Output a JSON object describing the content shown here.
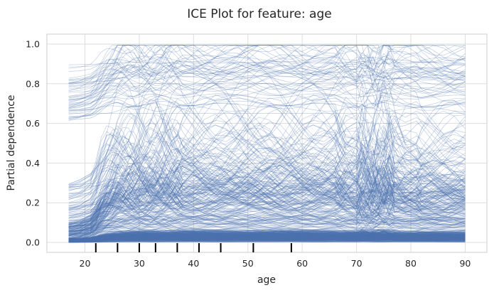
{
  "chart_data": {
    "type": "line",
    "title": "ICE Plot for feature: age",
    "xlabel": "age",
    "ylabel": "Partial dependence",
    "xlim": [
      13,
      94
    ],
    "ylim": [
      -0.05,
      1.05
    ],
    "xticks": [
      20,
      30,
      40,
      50,
      60,
      70,
      80,
      90
    ],
    "yticks": [
      0.0,
      0.2,
      0.4,
      0.6,
      0.8,
      1.0
    ],
    "ytick_labels": [
      "0.0",
      "0.2",
      "0.4",
      "0.6",
      "0.8",
      "1.0"
    ],
    "grid": true,
    "rug_deciles": [
      22,
      26,
      30,
      33,
      37,
      41,
      45,
      51,
      58
    ],
    "x": [
      17,
      19,
      21,
      22,
      23,
      24,
      25,
      26,
      27,
      28,
      29,
      30,
      31,
      32,
      33,
      34,
      35,
      36,
      37,
      38,
      40,
      42,
      44,
      46,
      48,
      50,
      52,
      54,
      56,
      58,
      60,
      62,
      64,
      66,
      67,
      68,
      70,
      71,
      72,
      73,
      74,
      75,
      76,
      77,
      79,
      81,
      82,
      84,
      86,
      88,
      90
    ],
    "line_color": "#4c72b0",
    "series_note_count": 600
  }
}
